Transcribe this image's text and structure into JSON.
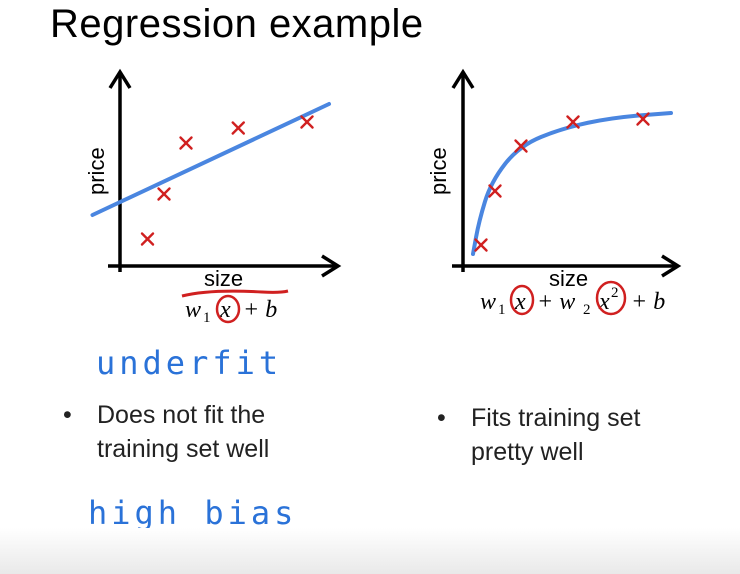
{
  "slide": {
    "title": "Regression example"
  },
  "colors": {
    "fit_line": "#4a86e0",
    "marker": "#d02020",
    "annotation": "#d02020",
    "handwriting": "#2a72d8"
  },
  "chart_data": [
    {
      "type": "scatter",
      "title": "",
      "xlabel": "size",
      "ylabel": "price",
      "model_formula": "w1x + b",
      "fit": "linear",
      "points": [
        [
          1.0,
          0.9
        ],
        [
          1.6,
          2.4
        ],
        [
          2.4,
          4.1
        ],
        [
          4.3,
          4.6
        ],
        [
          6.8,
          4.8
        ]
      ],
      "fit_line": [
        [
          -1.0,
          1.7
        ],
        [
          7.6,
          5.4
        ]
      ],
      "xlim": [
        0,
        8
      ],
      "ylim": [
        0,
        6
      ],
      "grid": false,
      "annotations": [
        "x circled in red",
        "formula underlined in red"
      ]
    },
    {
      "type": "scatter",
      "title": "",
      "xlabel": "size",
      "ylabel": "price",
      "model_formula": "w1x + w2x² + b",
      "fit": "quadratic",
      "points": [
        [
          0.9,
          0.7
        ],
        [
          1.6,
          2.5
        ],
        [
          2.9,
          4.0
        ],
        [
          5.5,
          4.8
        ],
        [
          9.0,
          4.9
        ]
      ],
      "fit_curve": [
        [
          0.5,
          0.4
        ],
        [
          0.8,
          1.5
        ],
        [
          1.4,
          2.8
        ],
        [
          2.8,
          4.0
        ],
        [
          5.0,
          4.6
        ],
        [
          7.5,
          4.95
        ],
        [
          10.4,
          5.1
        ]
      ],
      "xlim": [
        0,
        10.5
      ],
      "ylim": [
        0,
        6
      ],
      "grid": false,
      "annotations": [
        "x circled in red",
        "x² circled in red"
      ]
    }
  ],
  "notes": {
    "left_handwritten_1": "underfit",
    "left_handwritten_2": "high bias",
    "left_bullet": "• Does not fit the training set well",
    "left_bullet_line1": "Does not fit the",
    "left_bullet_line2": "training set well",
    "right_bullet_line1": "Fits training set",
    "right_bullet_line2": "pretty well",
    "bullet_symbol": "•"
  }
}
